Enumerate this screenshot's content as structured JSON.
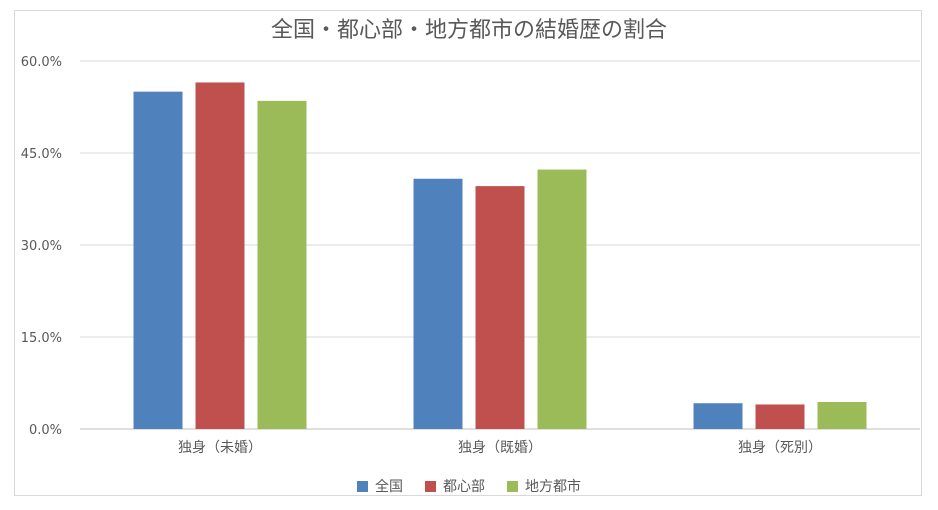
{
  "chart_data": {
    "type": "bar",
    "title": "全国・都心部・地方都市の結婚歴の割合",
    "categories": [
      "独身（未婚）",
      "独身（既婚）",
      "独身（死別）"
    ],
    "series": [
      {
        "name": "全国",
        "color": "#4f81bd",
        "values": [
          55.0,
          40.8,
          4.2
        ]
      },
      {
        "name": "都心部",
        "color": "#c0504d",
        "values": [
          56.5,
          39.6,
          4.0
        ]
      },
      {
        "name": "地方都市",
        "color": "#9bbb59",
        "values": [
          53.5,
          42.3,
          4.4
        ]
      }
    ],
    "yticks": [
      "0.0%",
      "15.0%",
      "30.0%",
      "45.0%",
      "60.0%"
    ],
    "ylim": [
      0,
      60
    ],
    "grid": true,
    "legend": "bottom"
  }
}
